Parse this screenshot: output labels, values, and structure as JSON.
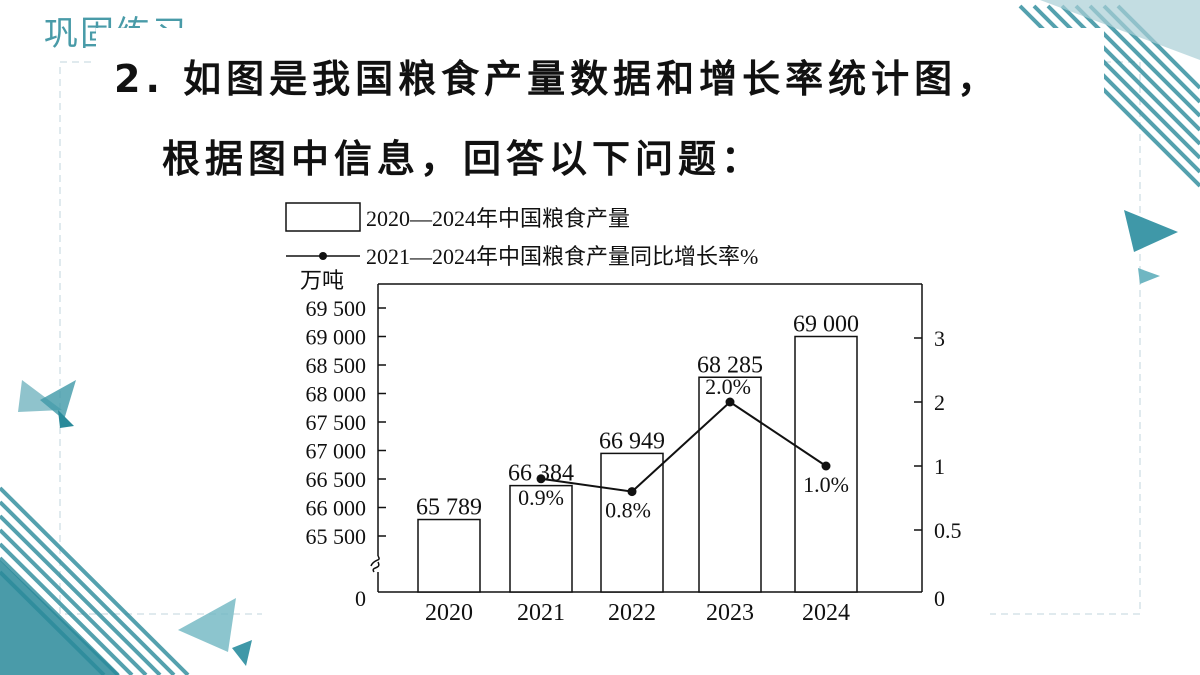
{
  "slide_label": "巩固练习",
  "question": {
    "line1": "2. 如图是我国粮食产量数据和增长率统计图，",
    "line2": "根据图中信息，回答以下问题："
  },
  "colors": {
    "accent": "#2a8a9a",
    "ink": "#111111"
  },
  "chart_data": {
    "type": "bar",
    "categories": [
      "2020",
      "2021",
      "2022",
      "2023",
      "2024"
    ],
    "series": [
      {
        "name": "2020—2024年中国粮食产量",
        "type": "bar",
        "values": [
          65789,
          66384,
          66949,
          68285,
          69000
        ],
        "labels": [
          "65 789",
          "66 384",
          "66 949",
          "68 285",
          "69 000"
        ]
      },
      {
        "name": "2021—2024年中国粮食产量同比增长率%",
        "type": "line",
        "x": [
          "2021",
          "2022",
          "2023",
          "2024"
        ],
        "values": [
          0.9,
          0.8,
          2.0,
          1.0
        ],
        "labels": [
          "0.9%",
          "0.8%",
          "2.0%",
          "1.0%"
        ]
      }
    ],
    "left_axis": {
      "unit": "万吨",
      "ticks": [
        65500,
        66000,
        66500,
        67000,
        67500,
        68000,
        68500,
        69000,
        69500
      ],
      "tick_labels": [
        "65 500",
        "66 000",
        "66 500",
        "67 000",
        "67 500",
        "68 000",
        "68 500",
        "69 000",
        "69 500"
      ],
      "zero_label": "0",
      "ylim": [
        65500,
        69500
      ],
      "axis_break": true
    },
    "right_axis": {
      "ticks": [
        0.5,
        1,
        2,
        3
      ],
      "tick_labels": [
        "0.5",
        "1",
        "2",
        "3"
      ],
      "zero_label": "0"
    },
    "legend_position": "top-left",
    "grid": false
  }
}
